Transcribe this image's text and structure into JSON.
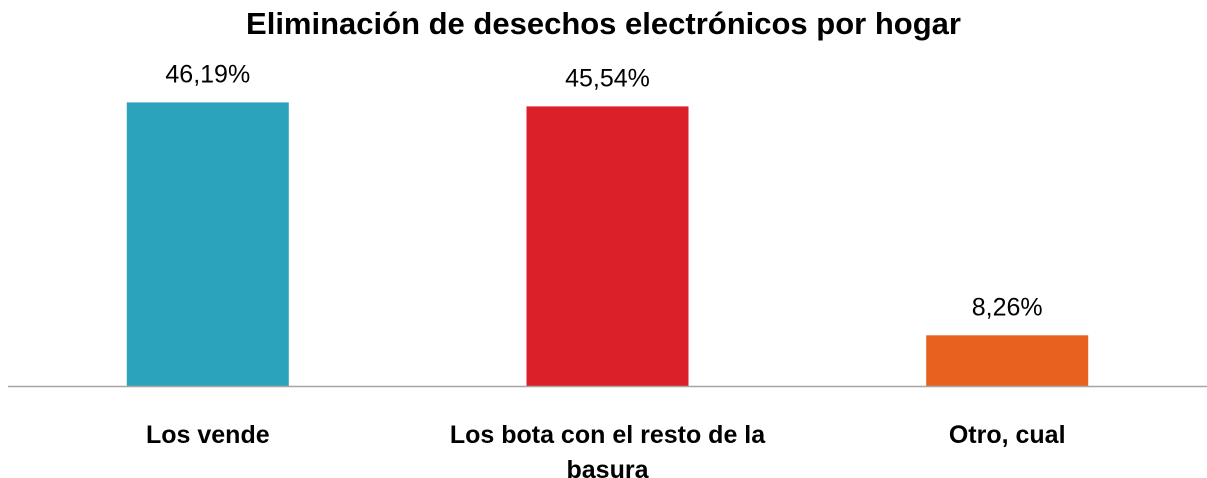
{
  "chart_data": {
    "type": "bar",
    "title": "Eliminación de desechos electrónicos por hogar",
    "categories": [
      "Los vende",
      "Los bota con el resto de la basura",
      "Otro, cual"
    ],
    "category_lines": [
      [
        "Los vende"
      ],
      [
        "Los bota con el resto de la",
        "basura"
      ],
      [
        "Otro, cual"
      ]
    ],
    "values": [
      46.19,
      45.54,
      8.26
    ],
    "data_labels": [
      "46,19%",
      "45,54%",
      "8,26%"
    ],
    "colors": [
      "#2BA3BC",
      "#DB2029",
      "#E8611F"
    ],
    "ylim": [
      0,
      50
    ],
    "xlabel": "",
    "ylabel": "",
    "grid": false,
    "legend": "none",
    "axis_color": "#A6A6A6"
  }
}
